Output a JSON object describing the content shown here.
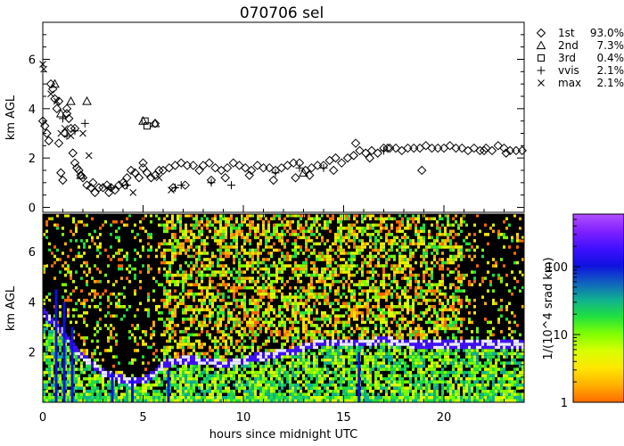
{
  "chart_data": [
    {
      "type": "scatter",
      "title": "070706 sel",
      "ylabel": "km AGL",
      "xlim": [
        0,
        24
      ],
      "ylim": [
        -0.2,
        7.5
      ],
      "yticks": [
        0,
        2,
        4,
        6
      ],
      "yminor_step": 0.5,
      "legend_position": "top-right, outside plot",
      "series": [
        {
          "name": "1st",
          "pct": "93.0%",
          "marker": "diamond",
          "x": [
            0.0,
            0.1,
            0.2,
            0.3,
            0.5,
            0.6,
            0.7,
            0.8,
            0.9,
            1.0,
            1.1,
            1.2,
            1.3,
            1.4,
            1.5,
            1.6,
            1.7,
            1.8,
            1.9,
            2.0,
            2.2,
            2.4,
            2.6,
            2.8,
            3.0,
            3.2,
            3.4,
            3.6,
            3.8,
            4.0,
            4.2,
            4.4,
            4.6,
            4.8,
            5.0,
            5.2,
            5.4,
            5.6,
            5.8,
            6.0,
            6.3,
            6.6,
            6.9,
            7.2,
            7.5,
            7.8,
            8.0,
            8.3,
            8.6,
            8.9,
            9.2,
            9.5,
            9.8,
            10.1,
            10.4,
            10.7,
            11.0,
            11.3,
            11.6,
            11.9,
            12.2,
            12.5,
            12.8,
            13.1,
            13.4,
            13.7,
            14.0,
            14.3,
            14.6,
            14.9,
            15.2,
            15.5,
            15.8,
            16.1,
            16.4,
            16.7,
            17.0,
            17.3,
            17.6,
            17.9,
            18.2,
            18.5,
            18.8,
            19.1,
            19.4,
            19.7,
            20.0,
            20.3,
            20.6,
            20.9,
            21.2,
            21.5,
            21.8,
            22.1,
            22.4,
            22.7,
            23.0,
            23.3,
            23.6,
            23.9,
            0.4,
            0.8,
            1.2,
            1.6,
            2.5,
            3.3,
            4.1,
            5.0,
            5.6,
            6.5,
            7.1,
            8.4,
            9.1,
            10.3,
            11.5,
            12.6,
            13.3,
            14.5,
            15.6,
            16.3,
            17.2,
            18.9,
            22.0,
            23.1
          ],
          "y": [
            3.5,
            3.3,
            3.0,
            2.7,
            4.8,
            4.4,
            4.0,
            2.6,
            1.4,
            1.1,
            3.0,
            3.8,
            3.6,
            3.2,
            2.2,
            1.8,
            1.6,
            1.5,
            1.3,
            1.2,
            0.9,
            0.8,
            0.6,
            0.8,
            0.8,
            0.9,
            0.8,
            0.7,
            0.9,
            1.0,
            1.2,
            1.5,
            1.4,
            1.2,
            1.6,
            1.4,
            1.2,
            1.3,
            1.5,
            1.5,
            1.6,
            1.7,
            1.8,
            1.7,
            1.7,
            1.5,
            1.7,
            1.8,
            1.6,
            1.5,
            1.6,
            1.8,
            1.7,
            1.6,
            1.5,
            1.7,
            1.6,
            1.6,
            1.5,
            1.6,
            1.7,
            1.8,
            1.8,
            1.5,
            1.6,
            1.7,
            1.7,
            1.9,
            2.0,
            1.8,
            2.0,
            2.1,
            2.3,
            2.2,
            2.3,
            2.2,
            2.4,
            2.4,
            2.4,
            2.3,
            2.4,
            2.4,
            2.4,
            2.5,
            2.4,
            2.4,
            2.4,
            2.5,
            2.4,
            2.4,
            2.3,
            2.4,
            2.3,
            2.4,
            2.3,
            2.5,
            2.4,
            2.3,
            2.3,
            2.3,
            5.0,
            4.3,
            4.0,
            3.2,
            1.0,
            0.6,
            0.9,
            1.8,
            3.4,
            0.8,
            0.9,
            1.1,
            1.2,
            1.3,
            1.1,
            1.2,
            1.3,
            1.5,
            2.6,
            2.0,
            2.4,
            1.5,
            2.3,
            2.2
          ]
        },
        {
          "name": "2nd",
          "pct": "7.3%",
          "marker": "triangle",
          "x": [
            0.6,
            0.9,
            1.4,
            2.2,
            5.0,
            5.6,
            1.9,
            13.0
          ],
          "y": [
            5.0,
            3.8,
            4.3,
            4.3,
            3.5,
            3.4,
            1.3,
            1.4
          ]
        },
        {
          "name": "3rd",
          "pct": "0.4%",
          "marker": "square",
          "x": [
            5.1,
            5.2
          ],
          "y": [
            3.5,
            3.3
          ]
        },
        {
          "name": "vvis",
          "pct": "2.1%",
          "marker": "plus",
          "x": [
            1.0,
            1.2,
            1.6,
            2.1,
            3.4,
            4.2,
            6.6,
            6.9,
            8.4,
            9.4,
            11.6,
            12.8,
            14.0,
            17.0
          ],
          "y": [
            3.6,
            2.9,
            3.1,
            3.4,
            0.8,
            0.9,
            0.8,
            0.9,
            1.0,
            0.9,
            1.4,
            1.6,
            1.6,
            2.3
          ]
        },
        {
          "name": "max",
          "pct": "2.1%",
          "marker": "cross",
          "x": [
            0.0,
            0.05,
            0.4,
            0.7,
            0.9,
            1.1,
            1.4,
            2.0,
            2.3,
            4.5,
            5.8,
            6.4
          ],
          "y": [
            5.8,
            5.6,
            4.6,
            4.3,
            3.0,
            3.2,
            2.9,
            3.0,
            2.1,
            0.6,
            1.2,
            0.7
          ]
        }
      ]
    },
    {
      "type": "heatmap",
      "ylabel": "km AGL",
      "xlabel": "hours since midnight UTC",
      "xlim": [
        0,
        24
      ],
      "xticks": [
        0,
        5,
        10,
        15,
        20
      ],
      "xminor_step": 1,
      "ylim": [
        0,
        7.5
      ],
      "yticks": [
        2,
        4,
        6
      ],
      "yminor_step": 0.5,
      "colorbar": {
        "label": "1/(10^4 srad km)",
        "scale": "log",
        "range": [
          1,
          600
        ],
        "ticks": [
          1,
          10,
          100
        ],
        "colors": [
          "#ff6a00",
          "#ffb000",
          "#ffe600",
          "#d8ff00",
          "#80ff00",
          "#20e040",
          "#10b090",
          "#1060c0",
          "#1010e0",
          "#4010ff",
          "#8020ff",
          "#b050ff"
        ]
      },
      "cloud_base_km": [
        3.6,
        3.2,
        2.8,
        2.2,
        1.8,
        1.5,
        1.2,
        1.0,
        0.9,
        0.8,
        0.9,
        1.1,
        1.5,
        1.6,
        1.7,
        1.7,
        1.6,
        1.6,
        1.5,
        1.6,
        1.6,
        1.8,
        1.8,
        1.9,
        2.0,
        2.0,
        2.2,
        2.3,
        2.4,
        2.4,
        2.4,
        2.4,
        2.4,
        2.4,
        2.5,
        2.4,
        2.4,
        2.3,
        2.3,
        2.3,
        2.3,
        2.3,
        2.3,
        2.3,
        2.3,
        2.3,
        2.3,
        2.3,
        2.3
      ]
    }
  ]
}
